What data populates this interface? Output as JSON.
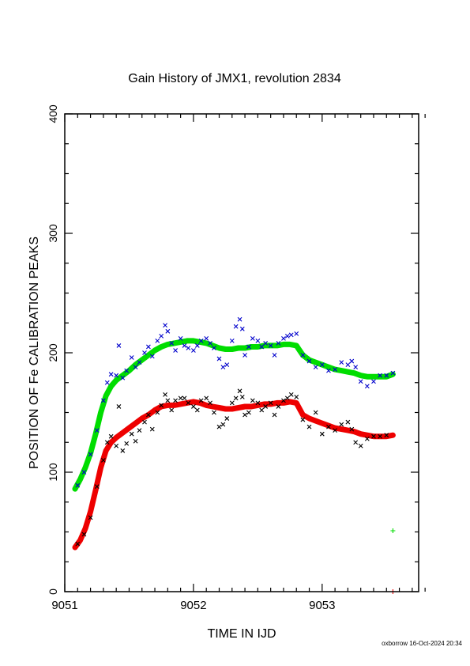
{
  "chart_data": {
    "type": "scatter",
    "title": "Gain History of JMX1, revolution 2834",
    "xlabel": "TIME IN IJD",
    "ylabel": "POSITION OF Fe CALIBRATION PEAKS",
    "xlim": [
      9051,
      9053.75
    ],
    "ylim": [
      0,
      400
    ],
    "xticks": [
      9051,
      9052,
      9053
    ],
    "yticks": [
      0,
      100,
      200,
      300,
      400
    ],
    "grid": false,
    "series": [
      {
        "marker": "line",
        "color": "#00dd00",
        "x": [
          9051.08,
          9051.12,
          9051.16,
          9051.2,
          9051.24,
          9051.28,
          9051.32,
          9051.36,
          9051.4,
          9051.45,
          9051.5,
          9051.55,
          9051.6,
          9051.65,
          9051.7,
          9051.75,
          9051.8,
          9051.85,
          9051.9,
          9051.95,
          9052.0,
          9052.05,
          9052.1,
          9052.15,
          9052.2,
          9052.25,
          9052.3,
          9052.35,
          9052.4,
          9052.45,
          9052.5,
          9052.55,
          9052.6,
          9052.65,
          9052.7,
          9052.75,
          9052.8,
          9052.85,
          9052.9,
          9052.95,
          9053.0,
          9053.05,
          9053.1,
          9053.15,
          9053.2,
          9053.25,
          9053.3,
          9053.35,
          9053.4,
          9053.45,
          9053.5,
          9053.55
        ],
        "y": [
          86,
          94,
          104,
          116,
          132,
          150,
          164,
          172,
          177,
          181,
          185,
          190,
          194,
          198,
          202,
          205,
          207,
          208,
          209,
          210,
          210,
          209,
          208,
          206,
          204,
          203,
          203,
          204,
          204,
          205,
          205,
          206,
          206,
          206,
          207,
          207,
          206,
          198,
          194,
          192,
          190,
          188,
          186,
          185,
          184,
          183,
          181,
          180,
          180,
          180,
          180,
          182
        ]
      },
      {
        "marker": "line",
        "color": "#ee0000",
        "x": [
          9051.08,
          9051.12,
          9051.16,
          9051.2,
          9051.24,
          9051.28,
          9051.32,
          9051.36,
          9051.4,
          9051.45,
          9051.5,
          9051.55,
          9051.6,
          9051.65,
          9051.7,
          9051.75,
          9051.8,
          9051.85,
          9051.9,
          9051.95,
          9052.0,
          9052.05,
          9052.1,
          9052.15,
          9052.2,
          9052.25,
          9052.3,
          9052.35,
          9052.4,
          9052.45,
          9052.5,
          9052.55,
          9052.6,
          9052.65,
          9052.7,
          9052.75,
          9052.8,
          9052.85,
          9052.9,
          9052.95,
          9053.0,
          9053.05,
          9053.1,
          9053.15,
          9053.2,
          9053.25,
          9053.3,
          9053.35,
          9053.4,
          9053.45,
          9053.5,
          9053.55
        ],
        "y": [
          37,
          43,
          53,
          67,
          85,
          104,
          118,
          125,
          129,
          133,
          137,
          141,
          145,
          148,
          152,
          155,
          156,
          156,
          157,
          158,
          159,
          158,
          156,
          155,
          154,
          153,
          153,
          154,
          155,
          155,
          156,
          157,
          157,
          158,
          158,
          159,
          158,
          148,
          145,
          143,
          141,
          139,
          137,
          136,
          135,
          134,
          132,
          131,
          130,
          130,
          130,
          131
        ]
      },
      {
        "marker": "x",
        "color": "#0000cc",
        "x": [
          9051.1,
          9051.15,
          9051.2,
          9051.25,
          9051.3,
          9051.33,
          9051.36,
          9051.4,
          9051.42,
          9051.45,
          9051.48,
          9051.52,
          9051.55,
          9051.58,
          9051.62,
          9051.65,
          9051.68,
          9051.72,
          9051.75,
          9051.78,
          9051.8,
          9051.83,
          9051.86,
          9051.9,
          9051.93,
          9051.96,
          9052.0,
          9052.03,
          9052.06,
          9052.1,
          9052.13,
          9052.16,
          9052.2,
          9052.23,
          9052.26,
          9052.3,
          9052.33,
          9052.36,
          9052.38,
          9052.4,
          9052.43,
          9052.46,
          9052.5,
          9052.53,
          9052.56,
          9052.6,
          9052.63,
          9052.66,
          9052.7,
          9052.73,
          9052.76,
          9052.8,
          9052.85,
          9052.9,
          9052.95,
          9053.0,
          9053.05,
          9053.1,
          9053.15,
          9053.2,
          9053.23,
          9053.26,
          9053.3,
          9053.35,
          9053.4,
          9053.45,
          9053.5,
          9053.55
        ],
        "y": [
          89,
          100,
          115,
          135,
          160,
          175,
          182,
          181,
          206,
          179,
          185,
          196,
          188,
          192,
          200,
          205,
          197,
          210,
          214,
          223,
          218,
          208,
          202,
          212,
          206,
          204,
          202,
          206,
          210,
          212,
          208,
          204,
          195,
          188,
          190,
          210,
          222,
          228,
          220,
          198,
          205,
          212,
          210,
          205,
          208,
          206,
          198,
          208,
          212,
          214,
          215,
          216,
          198,
          193,
          188,
          190,
          185,
          186,
          192,
          190,
          193,
          188,
          176,
          172,
          176,
          181,
          181,
          183
        ]
      },
      {
        "marker": "x",
        "color": "#000000",
        "x": [
          9051.1,
          9051.15,
          9051.2,
          9051.25,
          9051.3,
          9051.33,
          9051.36,
          9051.4,
          9051.42,
          9051.45,
          9051.48,
          9051.52,
          9051.55,
          9051.58,
          9051.62,
          9051.65,
          9051.68,
          9051.72,
          9051.75,
          9051.78,
          9051.8,
          9051.83,
          9051.86,
          9051.9,
          9051.93,
          9051.96,
          9052.0,
          9052.03,
          9052.06,
          9052.1,
          9052.13,
          9052.16,
          9052.2,
          9052.23,
          9052.26,
          9052.3,
          9052.33,
          9052.36,
          9052.38,
          9052.4,
          9052.43,
          9052.46,
          9052.5,
          9052.53,
          9052.56,
          9052.6,
          9052.63,
          9052.66,
          9052.7,
          9052.73,
          9052.76,
          9052.8,
          9052.85,
          9052.9,
          9052.95,
          9053.0,
          9053.05,
          9053.1,
          9053.15,
          9053.2,
          9053.23,
          9053.26,
          9053.3,
          9053.35,
          9053.4,
          9053.45,
          9053.5
        ],
        "y": [
          40,
          48,
          62,
          88,
          110,
          125,
          130,
          122,
          155,
          118,
          124,
          132,
          126,
          135,
          142,
          148,
          136,
          150,
          156,
          165,
          160,
          152,
          160,
          162,
          162,
          158,
          155,
          152,
          160,
          162,
          158,
          150,
          138,
          140,
          145,
          158,
          162,
          168,
          163,
          148,
          150,
          160,
          158,
          152,
          155,
          158,
          148,
          155,
          160,
          162,
          165,
          163,
          144,
          138,
          150,
          132,
          138,
          135,
          140,
          142,
          136,
          125,
          122,
          128,
          130,
          130,
          131
        ]
      },
      {
        "marker": "+",
        "color": "#00dd00",
        "x": [
          9053.55
        ],
        "y": [
          51
        ]
      },
      {
        "marker": "+",
        "color": "#ee0000",
        "x": [
          9053.55
        ],
        "y": [
          0
        ]
      }
    ]
  },
  "footer": "oxborrow 16-Oct-2024 20:34"
}
